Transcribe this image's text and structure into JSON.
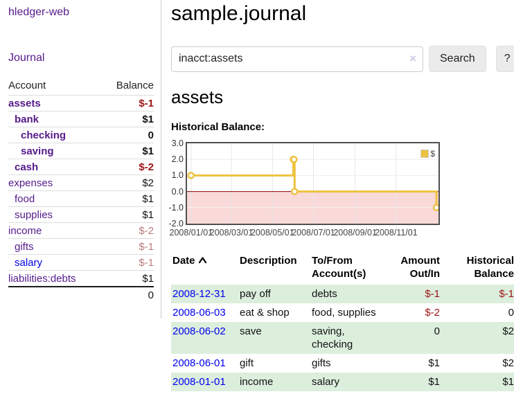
{
  "colors": {
    "link_purple": "#551a8b",
    "link_blue": "#0000ee",
    "negative_strong": "#9d1414",
    "negative_muted": "#bb7b7b",
    "row_stripe_green": "#dceedc",
    "chart_line_yellow": "#edc240",
    "chart_negative_fill": "#fad9d9",
    "chart_zero_line": "#8b0000",
    "chart_border": "#4f4f4f",
    "grid_line": "#e6e6e6"
  },
  "brand": "hledger-web",
  "nav": {
    "journal": "Journal"
  },
  "sidebar": {
    "header": {
      "account": "Account",
      "balance": "Balance"
    },
    "accounts": [
      {
        "name": "assets",
        "depth": 1,
        "bold": true,
        "balance": "$-1"
      },
      {
        "name": "bank",
        "depth": 2,
        "bold": true,
        "balance": "$1"
      },
      {
        "name": "checking",
        "depth": 3,
        "bold": true,
        "balance": "0"
      },
      {
        "name": "saving",
        "depth": 3,
        "bold": true,
        "balance": "$1"
      },
      {
        "name": "cash",
        "depth": 2,
        "bold": true,
        "balance": "$-2"
      },
      {
        "name": "expenses",
        "depth": 1,
        "bold": false,
        "balance": "$2"
      },
      {
        "name": "food",
        "depth": 2,
        "bold": false,
        "balance": "$1"
      },
      {
        "name": "supplies",
        "depth": 2,
        "bold": false,
        "balance": "$1"
      },
      {
        "name": "income",
        "depth": 1,
        "bold": false,
        "balance": "$-2"
      },
      {
        "name": "gifts",
        "depth": 2,
        "bold": false,
        "balance": "$-1"
      },
      {
        "name": "salary",
        "depth": 2,
        "bold": false,
        "balance": "$-1",
        "link_style": "blue"
      },
      {
        "name": "liabilities:debts",
        "depth": 1,
        "bold": false,
        "balance": "$1"
      }
    ],
    "total": "0"
  },
  "page": {
    "title": "sample.journal"
  },
  "search": {
    "value": "inacct:assets",
    "clear_icon": "×",
    "search_button": "Search",
    "help_button": "?"
  },
  "account_view": {
    "heading": "assets",
    "chart_title": "Historical Balance:"
  },
  "chart_data": {
    "type": "line",
    "step": true,
    "title": "Historical Balance",
    "series": [
      {
        "name": "$",
        "color": "#edc240",
        "points": [
          [
            "2008-01-01",
            1
          ],
          [
            "2008-06-01",
            2
          ],
          [
            "2008-06-02",
            2
          ],
          [
            "2008-06-03",
            0
          ],
          [
            "2008-12-31",
            -1
          ]
        ]
      }
    ],
    "xlim": [
      "2007-12-26",
      "2009-01-03"
    ],
    "ylim": [
      -2,
      3
    ],
    "xticks": [
      {
        "date": "2008-01-01",
        "label": "2008/01/01"
      },
      {
        "date": "2008-03-01",
        "label": "2008/03/01"
      },
      {
        "date": "2008-05-01",
        "label": "2008/05/01"
      },
      {
        "date": "2008-07-01",
        "label": "2008/07/01"
      },
      {
        "date": "2008-09-01",
        "label": "2008/09/01"
      },
      {
        "date": "2008-11-01",
        "label": "2008/11/01"
      }
    ],
    "yticks": [
      {
        "value": 3,
        "label": "3.0"
      },
      {
        "value": 2,
        "label": "2.0"
      },
      {
        "value": 1,
        "label": "1.0"
      },
      {
        "value": 0,
        "label": "0.0"
      },
      {
        "value": -1,
        "label": "-1.0"
      },
      {
        "value": -2,
        "label": "-2.0"
      }
    ],
    "grid": true,
    "negative_region_fill": "#fad9d9",
    "zero_line_color": "#8b0000",
    "legend": {
      "position": "top-right",
      "entries": [
        "$"
      ]
    }
  },
  "register": {
    "columns": [
      {
        "line1": "Date",
        "line2": "",
        "align": "l",
        "sort_icon": "chevron-up"
      },
      {
        "line1": "Description",
        "line2": "",
        "align": "l"
      },
      {
        "line1": "To/From",
        "line2": "Account(s)",
        "align": "l"
      },
      {
        "line1": "Amount",
        "line2": "Out/In",
        "align": "r"
      },
      {
        "line1": "Historical",
        "line2": "Balance",
        "align": "r"
      }
    ],
    "rows": [
      {
        "date": "2008-12-31",
        "description": "pay off",
        "accounts": [
          "debts"
        ],
        "amount": "$-1",
        "balance": "$-1"
      },
      {
        "date": "2008-06-03",
        "description": "eat & shop",
        "accounts": [
          "food",
          "supplies"
        ],
        "amount": "$-2",
        "balance": "0"
      },
      {
        "date": "2008-06-02",
        "description": "save",
        "accounts": [
          "saving",
          "checking"
        ],
        "amount": "0",
        "balance": "$2"
      },
      {
        "date": "2008-06-01",
        "description": "gift",
        "accounts": [
          "gifts"
        ],
        "amount": "$1",
        "balance": "$2"
      },
      {
        "date": "2008-01-01",
        "description": "income",
        "accounts": [
          "salary"
        ],
        "amount": "$1",
        "balance": "$1"
      }
    ]
  }
}
